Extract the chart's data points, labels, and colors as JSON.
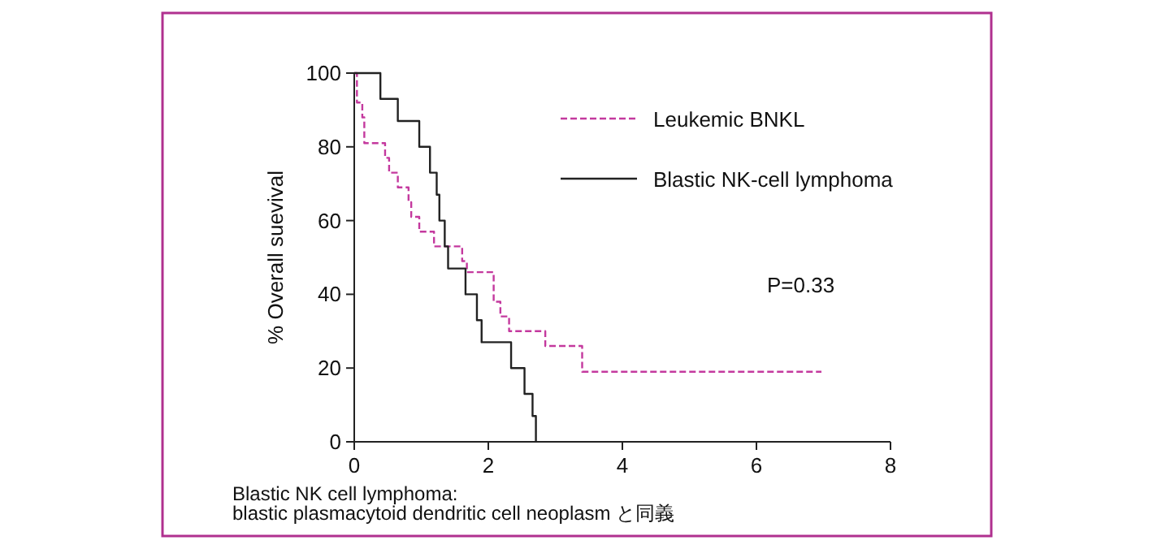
{
  "chart_data": {
    "type": "step",
    "ylabel": "% Overall suevival",
    "xlim": [
      0,
      8
    ],
    "xticks": [
      0,
      2,
      4,
      6,
      8
    ],
    "ylim": [
      0,
      100
    ],
    "yticks": [
      0,
      20,
      40,
      60,
      80,
      100
    ],
    "legend": "top right",
    "grid": false,
    "series": [
      {
        "name": "Leukemic BNKL",
        "color": "#c4399e",
        "line_style": "dashed",
        "x": [
          0,
          0.04,
          0.12,
          0.15,
          0.46,
          0.52,
          0.65,
          0.81,
          0.85,
          0.97,
          1.19,
          1.61,
          1.68,
          2.08,
          2.18,
          2.31,
          2.85,
          3.4,
          6.97
        ],
        "values": [
          100,
          92,
          88,
          81,
          77,
          73,
          69,
          65,
          61,
          57,
          53,
          49,
          46,
          38,
          34,
          30,
          26,
          19,
          19
        ]
      },
      {
        "name": "Blastic NK-cell lymphoma",
        "color": "#222222",
        "line_style": "solid",
        "x": [
          0,
          0.39,
          0.65,
          0.97,
          1.13,
          1.23,
          1.27,
          1.35,
          1.4,
          1.66,
          1.83,
          1.9,
          2.34,
          2.54,
          2.66,
          2.71
        ],
        "values": [
          100,
          93,
          87,
          80,
          73,
          67,
          60,
          53,
          47,
          40,
          33,
          27,
          20,
          13,
          7,
          0
        ]
      }
    ],
    "annotations": [
      "P=0.33",
      "Blastic NK cell lymphoma:",
      "blastic plasmacytoid dendritic cell neoplasm と同義"
    ]
  }
}
